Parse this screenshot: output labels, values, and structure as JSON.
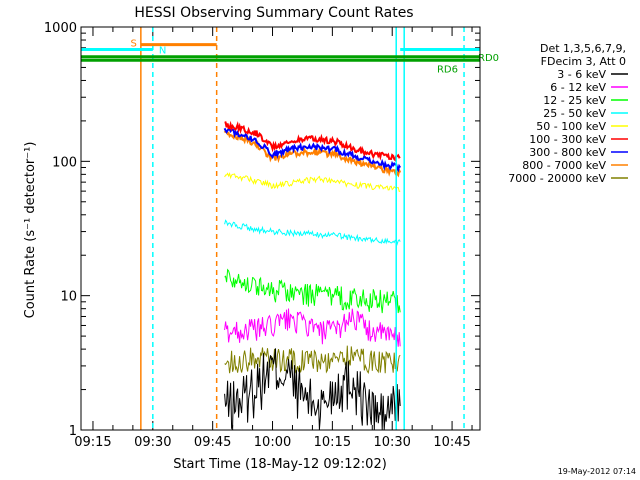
{
  "chart_data": {
    "type": "line",
    "title": "HESSI Observing Summary Count Rates",
    "xlabel": "Start Time (18-May-12 09:12:02)",
    "ylabel": "Count Rate (s⁻¹ detector⁻¹)",
    "y_scale": "log",
    "ylim": [
      1,
      1000
    ],
    "xlim": [
      "09:12",
      "10:52"
    ],
    "y_ticks": [
      {
        "value": 1,
        "label": "1"
      },
      {
        "value": 10,
        "label": "10"
      },
      {
        "value": 100,
        "label": "100"
      },
      {
        "value": 1000,
        "label": "1000"
      }
    ],
    "x_ticks": [
      "09:15",
      "09:30",
      "09:45",
      "10:00",
      "10:15",
      "10:30",
      "10:45"
    ],
    "legend": {
      "header": [
        "Det 1,3,5,6,7,9,",
        "FDecim 3, Att 0"
      ],
      "placement": "right"
    },
    "series": [
      {
        "name": "3 - 6 keV",
        "color": "#000000",
        "x": [
          "09:48",
          "09:52",
          "09:56",
          "10:00",
          "10:04",
          "10:08",
          "10:12",
          "10:16",
          "10:20",
          "10:24",
          "10:28",
          "10:32"
        ],
        "values": [
          1.6,
          1.7,
          2.3,
          3.0,
          2.6,
          1.8,
          1.5,
          2.2,
          2.5,
          1.5,
          1.3,
          1.8
        ]
      },
      {
        "name": "6 - 12 keV",
        "color": "#ff00ff",
        "x": [
          "09:48",
          "09:52",
          "09:56",
          "10:00",
          "10:04",
          "10:08",
          "10:12",
          "10:16",
          "10:20",
          "10:24",
          "10:28",
          "10:32"
        ],
        "values": [
          5.5,
          5.5,
          5.7,
          6.0,
          6.8,
          6.2,
          5.4,
          5.6,
          7.2,
          5.6,
          5.2,
          4.8
        ]
      },
      {
        "name": "12 - 25 keV",
        "color": "#00ff00",
        "x": [
          "09:48",
          "09:52",
          "09:56",
          "10:00",
          "10:04",
          "10:08",
          "10:12",
          "10:16",
          "10:20",
          "10:24",
          "10:28",
          "10:32"
        ],
        "values": [
          14.5,
          13.2,
          11.8,
          11.2,
          10.7,
          10.4,
          10.1,
          9.9,
          9.6,
          9.4,
          9.2,
          9.0
        ]
      },
      {
        "name": "25 - 50 keV",
        "color": "#00ffff",
        "x": [
          "09:48",
          "09:52",
          "09:56",
          "10:00",
          "10:04",
          "10:08",
          "10:12",
          "10:16",
          "10:20",
          "10:24",
          "10:28",
          "10:32"
        ],
        "values": [
          35,
          33,
          31,
          30,
          29.5,
          29,
          28.5,
          28,
          27,
          26,
          25.5,
          25
        ]
      },
      {
        "name": "50 - 100 keV",
        "color": "#ffff00",
        "x": [
          "09:48",
          "09:52",
          "09:56",
          "10:00",
          "10:04",
          "10:08",
          "10:12",
          "10:16",
          "10:20",
          "10:24",
          "10:28",
          "10:32"
        ],
        "values": [
          80,
          76,
          71,
          66,
          68,
          72,
          74,
          71,
          67,
          65,
          63,
          63
        ]
      },
      {
        "name": "100 - 300 keV",
        "color": "#ff0000",
        "x": [
          "09:48",
          "09:52",
          "09:56",
          "10:00",
          "10:04",
          "10:08",
          "10:12",
          "10:16",
          "10:20",
          "10:24",
          "10:28",
          "10:32"
        ],
        "values": [
          188,
          178,
          162,
          128,
          138,
          148,
          146,
          140,
          126,
          115,
          110,
          106
        ]
      },
      {
        "name": "300 - 800 keV",
        "color": "#0000ff",
        "x": [
          "09:48",
          "09:52",
          "09:56",
          "10:00",
          "10:04",
          "10:08",
          "10:12",
          "10:16",
          "10:20",
          "10:24",
          "10:28",
          "10:32"
        ],
        "values": [
          172,
          160,
          142,
          113,
          123,
          128,
          127,
          122,
          111,
          102,
          95,
          90
        ]
      },
      {
        "name": "800 - 7000 keV",
        "color": "#ff8000",
        "x": [
          "09:48",
          "09:52",
          "09:56",
          "10:00",
          "10:04",
          "10:08",
          "10:12",
          "10:16",
          "10:20",
          "10:24",
          "10:28",
          "10:32"
        ],
        "values": [
          162,
          150,
          132,
          105,
          113,
          117,
          116,
          112,
          101,
          94,
          87,
          82
        ]
      },
      {
        "name": "7000 - 20000 keV",
        "color": "#808000",
        "x": [
          "09:48",
          "09:52",
          "09:56",
          "10:00",
          "10:04",
          "10:08",
          "10:12",
          "10:16",
          "10:20",
          "10:24",
          "10:28",
          "10:32"
        ],
        "values": [
          3.2,
          3.3,
          3.5,
          3.4,
          3.4,
          3.3,
          3.3,
          3.4,
          3.6,
          3.3,
          3.2,
          3.2
        ]
      }
    ],
    "annotations": {
      "segments": [
        {
          "label": "S",
          "color": "#ff8000",
          "start": "09:27",
          "end": "09:46",
          "value": 740
        },
        {
          "label": "N",
          "color": "#00ffff",
          "start": "09:12",
          "end": "09:30",
          "value": 680
        },
        {
          "label": "",
          "color": "#00ffff",
          "start": "10:32",
          "end": "10:52",
          "value": 680
        },
        {
          "label": "RD0",
          "color": "#00a000",
          "start": "09:12",
          "end": "10:52",
          "value": 600
        },
        {
          "label": "RD6",
          "color": "#00a000",
          "start": "09:12",
          "end": "10:52",
          "value": 565
        }
      ],
      "vertical_lines": [
        {
          "time": "09:27",
          "color": "#ff8000",
          "style": "solid"
        },
        {
          "time": "09:30",
          "color": "#00ffff",
          "style": "dashed"
        },
        {
          "time": "09:46",
          "color": "#ff8000",
          "style": "dashed"
        },
        {
          "time": "10:31",
          "color": "#00ffff",
          "style": "solid"
        },
        {
          "time": "10:33",
          "color": "#00ffff",
          "style": "solid"
        },
        {
          "time": "10:48",
          "color": "#00ffff",
          "style": "dashed"
        }
      ],
      "data_gap_end": "09:46"
    },
    "footer_date": "19-May-2012 07:14"
  }
}
